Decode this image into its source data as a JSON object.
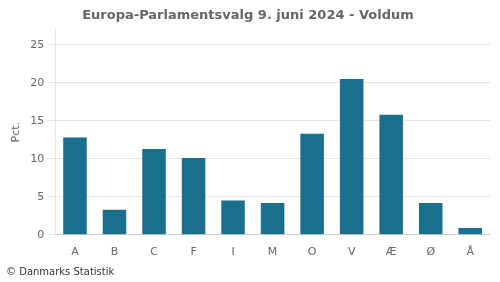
{
  "chart_data": {
    "type": "bar",
    "title": "Europa-Parlamentsvalg 9. juni 2024 - Voldum",
    "categories": [
      "A",
      "B",
      "C",
      "F",
      "I",
      "M",
      "O",
      "V",
      "Æ",
      "Ø",
      "Å"
    ],
    "values": [
      12.8,
      3.3,
      11.3,
      10.1,
      4.5,
      4.2,
      13.3,
      20.5,
      15.8,
      4.2,
      0.9
    ],
    "color": "#1a6e8e",
    "ylabel": "Pct.",
    "ylim": [
      0,
      27
    ],
    "yticks": [
      0,
      5,
      10,
      15,
      20,
      25
    ],
    "grid": true,
    "annotations": [
      "© Danmarks Statistik"
    ]
  }
}
